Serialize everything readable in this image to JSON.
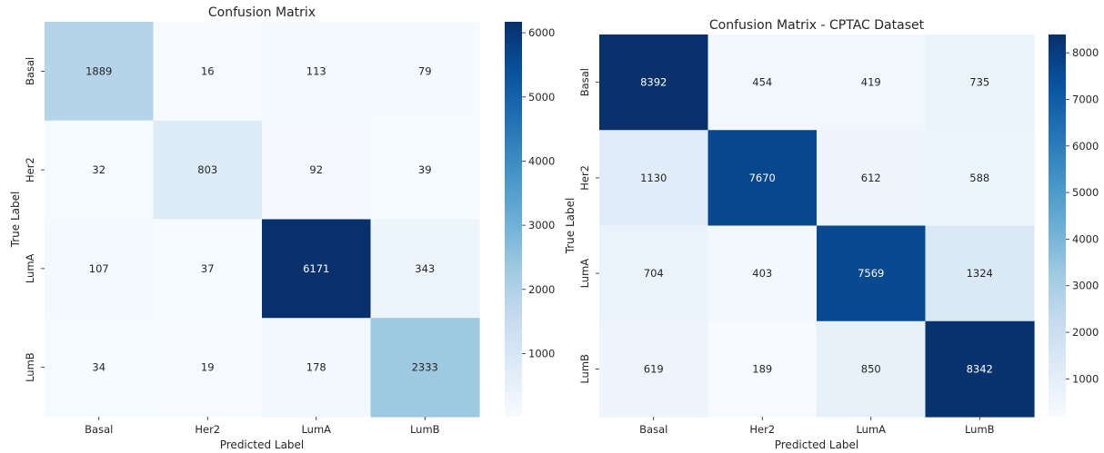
{
  "chart_data": [
    {
      "type": "heatmap",
      "title": "Confusion Matrix",
      "xlabel": "Predicted Label",
      "ylabel": "True Label",
      "x_categories": [
        "Basal",
        "Her2",
        "LumA",
        "LumB"
      ],
      "y_categories": [
        "Basal",
        "Her2",
        "LumA",
        "LumB"
      ],
      "values": [
        [
          1889,
          16,
          113,
          79
        ],
        [
          32,
          803,
          92,
          39
        ],
        [
          107,
          37,
          6171,
          343
        ],
        [
          34,
          19,
          178,
          2333
        ]
      ],
      "colormap": "Blues",
      "colorbar": {
        "min": 16,
        "max": 6171,
        "ticks": [
          1000,
          2000,
          3000,
          4000,
          5000,
          6000
        ]
      },
      "grid": false
    },
    {
      "type": "heatmap",
      "title": "Confusion Matrix - CPTAC Dataset",
      "xlabel": "Predicted Label",
      "ylabel": "True Label",
      "x_categories": [
        "Basal",
        "Her2",
        "LumA",
        "LumB"
      ],
      "y_categories": [
        "Basal",
        "Her2",
        "LumA",
        "LumB"
      ],
      "values": [
        [
          8392,
          454,
          419,
          735
        ],
        [
          1130,
          7670,
          612,
          588
        ],
        [
          704,
          403,
          7569,
          1324
        ],
        [
          619,
          189,
          850,
          8342
        ]
      ],
      "colormap": "Blues",
      "colorbar": {
        "min": 189,
        "max": 8392,
        "ticks": [
          1000,
          2000,
          3000,
          4000,
          5000,
          6000,
          7000,
          8000
        ]
      },
      "grid": false
    }
  ]
}
